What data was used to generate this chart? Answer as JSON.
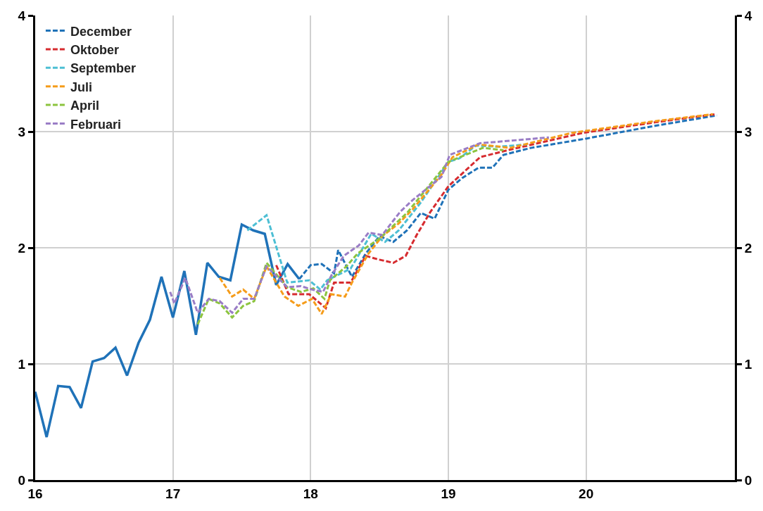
{
  "chart_data": {
    "type": "line",
    "xlim": [
      16,
      21.08
    ],
    "xticks": [
      16,
      17,
      18,
      19,
      20
    ],
    "ylim": [
      0,
      4
    ],
    "yticks": [
      0,
      1,
      2,
      3,
      4
    ],
    "y2lim": [
      0,
      4
    ],
    "y2ticks": [
      0,
      1,
      2,
      3,
      4
    ],
    "grid": true,
    "legend": "top left",
    "marker": "none",
    "series": [
      {
        "color": "#1f72b8",
        "line_style": "solid",
        "x": [
          16,
          16.083,
          16.167,
          16.25,
          16.333,
          16.417,
          16.5,
          16.583,
          16.667,
          16.75,
          16.833,
          16.917,
          17,
          17.083,
          17.167,
          17.25,
          17.333,
          17.417,
          17.5,
          17.583,
          17.667,
          17.75,
          17.833,
          17.917
        ],
        "values": [
          0.76,
          0.37,
          0.81,
          0.8,
          0.62,
          1.02,
          1.05,
          1.14,
          0.9,
          1.18,
          1.38,
          1.75,
          1.4,
          1.8,
          1.25,
          1.87,
          1.75,
          1.72,
          2.2,
          2.15,
          2.12,
          1.68,
          1.86,
          1.73
        ]
      },
      {
        "name": "December",
        "color": "#1f72b8",
        "line_style": "dashed",
        "x": [
          17.917,
          18,
          18.08,
          18.17,
          18.2,
          18.3,
          18.4,
          18.5,
          18.6,
          18.7,
          18.8,
          18.9,
          19,
          19.1,
          19.22,
          19.32,
          19.4,
          19.6,
          20,
          20.5,
          20.95
        ],
        "values": [
          1.73,
          1.85,
          1.86,
          1.78,
          1.98,
          1.75,
          1.95,
          2.1,
          2.05,
          2.15,
          2.3,
          2.25,
          2.5,
          2.6,
          2.69,
          2.69,
          2.8,
          2.86,
          2.94,
          3.05,
          3.14
        ]
      },
      {
        "name": "Oktober",
        "color": "#d62b2f",
        "line_style": "dashed",
        "x": [
          17.75,
          17.84,
          17.99,
          18.05,
          18.11,
          18.17,
          18.29,
          18.4,
          18.49,
          18.6,
          18.69,
          18.77,
          18.87,
          19,
          19.23,
          19.43,
          19.98,
          20.5,
          20.94
        ],
        "values": [
          1.85,
          1.6,
          1.6,
          1.54,
          1.48,
          1.7,
          1.7,
          1.93,
          1.9,
          1.87,
          1.93,
          2.11,
          2.31,
          2.53,
          2.78,
          2.84,
          2.99,
          3.08,
          3.15
        ]
      },
      {
        "name": "September",
        "color": "#4dbfd4",
        "line_style": "dashed",
        "x": [
          17.54,
          17.68,
          17.83,
          17.99,
          18.07,
          18.12,
          18.29,
          18.44,
          18.54,
          18.64,
          18.8,
          19,
          19.08,
          19.2,
          19.37,
          19.57
        ],
        "values": [
          2.15,
          2.28,
          1.7,
          1.72,
          1.64,
          1.72,
          1.82,
          2.12,
          2.05,
          2.15,
          2.39,
          2.74,
          2.77,
          2.88,
          2.87,
          2.89
        ]
      },
      {
        "name": "Juli",
        "color": "#f59c1a",
        "line_style": "dashed",
        "x": [
          17.34,
          17.43,
          17.51,
          17.59,
          17.68,
          17.81,
          17.91,
          18.01,
          18.08,
          18.15,
          18.25,
          18.3,
          18.42,
          18.52,
          18.64,
          18.74,
          18.95,
          19.03,
          19.22,
          19.45,
          19.9,
          20.5,
          20.92
        ],
        "values": [
          1.74,
          1.58,
          1.64,
          1.56,
          1.84,
          1.58,
          1.5,
          1.56,
          1.43,
          1.6,
          1.58,
          1.7,
          1.95,
          2.1,
          2.21,
          2.33,
          2.63,
          2.78,
          2.89,
          2.86,
          2.99,
          3.09,
          3.15
        ]
      },
      {
        "name": "April",
        "color": "#8cc43f",
        "line_style": "dashed",
        "x": [
          17.18,
          17.26,
          17.34,
          17.43,
          17.51,
          17.59,
          17.68,
          17.83,
          17.93,
          18.02,
          18.1,
          18.14,
          18.26,
          18.34,
          18.5,
          18.7,
          19,
          19.25,
          19.4
        ],
        "values": [
          1.34,
          1.56,
          1.52,
          1.4,
          1.5,
          1.54,
          1.87,
          1.66,
          1.62,
          1.65,
          1.56,
          1.72,
          1.84,
          1.95,
          2.08,
          2.3,
          2.74,
          2.86,
          2.84
        ]
      },
      {
        "name": "Februari",
        "color": "#9a7dc6",
        "line_style": "dashed",
        "x": [
          16.98,
          17.01,
          17.09,
          17.18,
          17.26,
          17.34,
          17.43,
          17.51,
          17.59,
          17.68,
          17.83,
          17.93,
          18.01,
          18.09,
          18.15,
          18.24,
          18.35,
          18.42,
          18.52,
          18.65,
          18.74,
          18.95,
          19.01,
          19.23,
          19.73
        ],
        "values": [
          1.62,
          1.52,
          1.74,
          1.44,
          1.56,
          1.54,
          1.44,
          1.56,
          1.56,
          1.84,
          1.66,
          1.67,
          1.64,
          1.62,
          1.76,
          1.93,
          2.02,
          2.13,
          2.11,
          2.31,
          2.41,
          2.61,
          2.8,
          2.9,
          2.95
        ]
      }
    ]
  }
}
